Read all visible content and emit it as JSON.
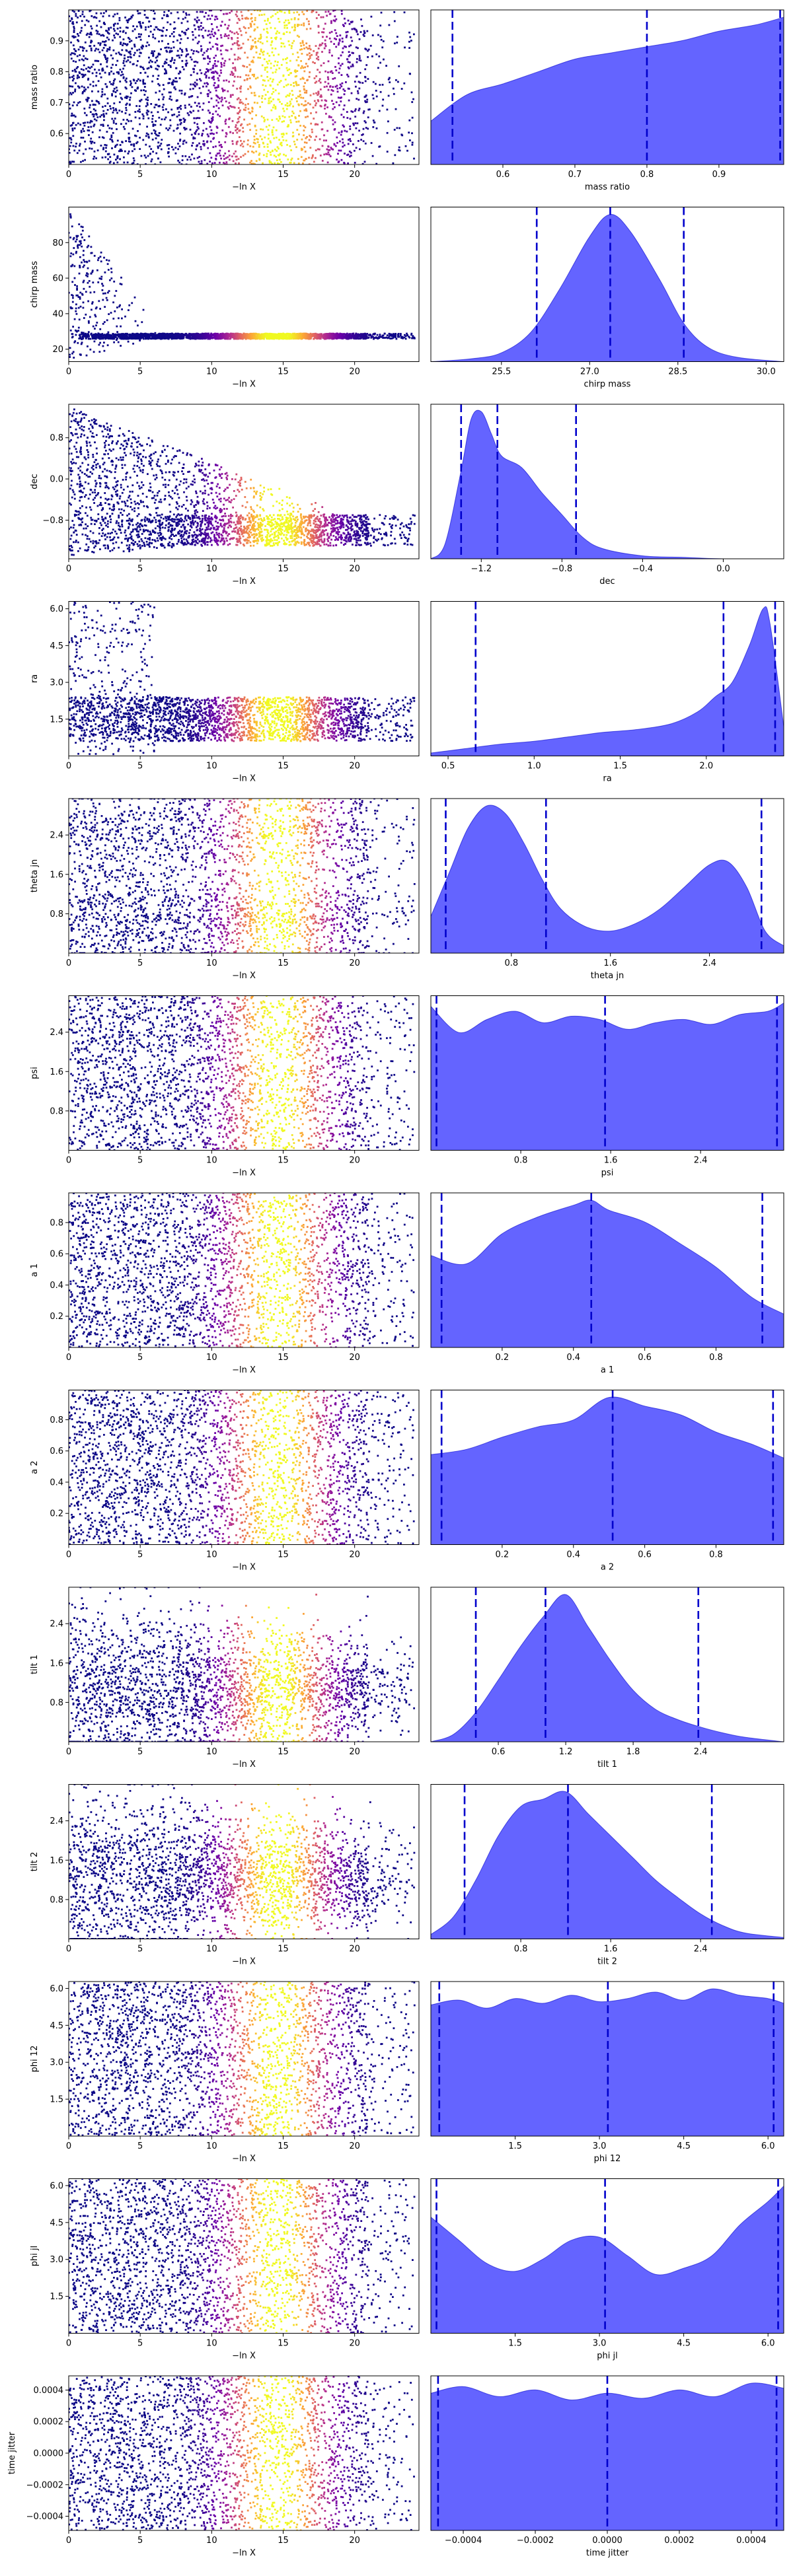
{
  "figure": {
    "x_axis_label": "−ln X"
  },
  "colors": {
    "trace_colormap": [
      "#0d0887",
      "#6a00a8",
      "#b12a90",
      "#e16462",
      "#fca636",
      "#f0f921"
    ],
    "posterior_fill": "#6464ff",
    "posterior_line": "#0000cc",
    "quantile_line": "#0000cc"
  },
  "chart_data": [
    {
      "type": "scatter",
      "name": "mass ratio",
      "ylabel": "mass ratio",
      "xlabel": "−ln X",
      "xlim": [
        0,
        24.5
      ],
      "ylim": [
        0.5,
        1.0
      ],
      "xticks": [
        0,
        5,
        10,
        15,
        20
      ],
      "yticks": [
        0.6,
        0.7,
        0.8,
        0.9
      ],
      "ytick_labels": [
        "0.6",
        "0.7",
        "0.8",
        "0.9"
      ],
      "pattern": "uniform",
      "y_range": [
        0.5,
        1.0
      ]
    },
    {
      "type": "area",
      "name": "mass ratio",
      "xlabel": "mass ratio",
      "xlim": [
        0.5,
        0.99
      ],
      "xticks": [
        0.6,
        0.7,
        0.8,
        0.9
      ],
      "xtick_labels": [
        "0.6",
        "0.7",
        "0.8",
        "0.9"
      ],
      "quantiles": [
        0.53,
        0.8,
        0.985
      ],
      "density": {
        "x": [
          0.5,
          0.55,
          0.6,
          0.65,
          0.7,
          0.75,
          0.8,
          0.85,
          0.9,
          0.95,
          0.99
        ],
        "y": [
          0.28,
          0.45,
          0.52,
          0.6,
          0.68,
          0.72,
          0.76,
          0.8,
          0.86,
          0.9,
          0.95
        ]
      }
    },
    {
      "type": "scatter",
      "name": "chirp mass",
      "ylabel": "chirp mass",
      "xlabel": "−ln X",
      "xlim": [
        0,
        24.5
      ],
      "ylim": [
        13,
        100
      ],
      "xticks": [
        0,
        5,
        10,
        15,
        20
      ],
      "yticks": [
        20,
        40,
        60,
        80
      ],
      "ytick_labels": [
        "20",
        "40",
        "60",
        "80"
      ],
      "pattern": "funnel",
      "y_center": 27.3,
      "y_wide": [
        14,
        99
      ],
      "y_narrow_halfwidth": 1.5,
      "converge_at": 7
    },
    {
      "type": "area",
      "name": "chirp mass",
      "xlabel": "chirp mass",
      "xlim": [
        24.3,
        30.3
      ],
      "xticks": [
        25.5,
        27.0,
        28.5,
        30.0
      ],
      "xtick_labels": [
        "25.5",
        "27.0",
        "28.5",
        "30.0"
      ],
      "quantiles": [
        26.1,
        27.35,
        28.6
      ],
      "density": {
        "x": [
          24.3,
          25.0,
          25.5,
          26.0,
          26.5,
          27.0,
          27.35,
          27.7,
          28.2,
          28.6,
          29.0,
          29.5,
          30.3
        ],
        "y": [
          0.0,
          0.02,
          0.06,
          0.2,
          0.5,
          0.85,
          1.0,
          0.88,
          0.55,
          0.26,
          0.1,
          0.03,
          0.0
        ]
      }
    },
    {
      "type": "scatter",
      "name": "dec",
      "ylabel": "dec",
      "xlabel": "−ln X",
      "xlim": [
        0,
        24.5
      ],
      "ylim": [
        -1.55,
        1.45
      ],
      "xticks": [
        0,
        5,
        10,
        15,
        20
      ],
      "yticks": [
        -0.8,
        0.0,
        0.8
      ],
      "ytick_labels": [
        "−0.8",
        "0.0",
        "0.8"
      ],
      "pattern": "wedge",
      "y_center": -1.0,
      "y_wide": [
        -1.5,
        1.4
      ],
      "y_narrow_halfwidth": 0.3,
      "converge_at": 20
    },
    {
      "type": "area",
      "name": "dec",
      "xlabel": "dec",
      "xlim": [
        -1.45,
        0.3
      ],
      "xticks": [
        -1.2,
        -0.8,
        -0.4,
        0.0
      ],
      "xtick_labels": [
        "−1.2",
        "−0.8",
        "−0.4",
        "0.0"
      ],
      "quantiles": [
        -1.3,
        -1.12,
        -0.73
      ],
      "density": {
        "x": [
          -1.45,
          -1.38,
          -1.3,
          -1.25,
          -1.2,
          -1.15,
          -1.1,
          -1.0,
          -0.9,
          -0.8,
          -0.7,
          -0.6,
          -0.4,
          -0.2,
          0.0,
          0.3
        ],
        "y": [
          0.0,
          0.1,
          0.6,
          0.95,
          1.0,
          0.85,
          0.7,
          0.62,
          0.45,
          0.3,
          0.15,
          0.07,
          0.02,
          0.01,
          0.0,
          0.0
        ]
      }
    },
    {
      "type": "scatter",
      "name": "ra",
      "ylabel": "ra",
      "xlabel": "−ln X",
      "xlim": [
        0,
        24.5
      ],
      "ylim": [
        0,
        6.3
      ],
      "xticks": [
        0,
        5,
        10,
        15,
        20
      ],
      "yticks": [
        1.5,
        3.0,
        4.5,
        6.0
      ],
      "ytick_labels": [
        "1.5",
        "3.0",
        "4.5",
        "6.0"
      ],
      "pattern": "band",
      "y_band": [
        0.6,
        2.4
      ],
      "y_wide": [
        0,
        6.28
      ],
      "converge_at": 6
    },
    {
      "type": "area",
      "name": "ra",
      "xlabel": "ra",
      "xlim": [
        0.4,
        2.45
      ],
      "xticks": [
        0.5,
        1.0,
        1.5,
        2.0
      ],
      "xtick_labels": [
        "0.5",
        "1.0",
        "1.5",
        "2.0"
      ],
      "quantiles": [
        0.66,
        2.1,
        2.4
      ],
      "density": {
        "x": [
          0.4,
          0.6,
          0.8,
          1.0,
          1.2,
          1.4,
          1.6,
          1.8,
          1.95,
          2.05,
          2.15,
          2.25,
          2.33,
          2.37,
          2.45
        ],
        "y": [
          0.02,
          0.05,
          0.08,
          0.1,
          0.13,
          0.16,
          0.18,
          0.22,
          0.3,
          0.4,
          0.5,
          0.75,
          1.0,
          0.9,
          0.2
        ]
      }
    },
    {
      "type": "scatter",
      "name": "theta jn",
      "ylabel": "theta jn",
      "xlabel": "−ln X",
      "xlim": [
        0,
        24.5
      ],
      "ylim": [
        0,
        3.14
      ],
      "xticks": [
        0,
        5,
        10,
        15,
        20
      ],
      "yticks": [
        0.8,
        1.6,
        2.4
      ],
      "ytick_labels": [
        "0.8",
        "1.6",
        "2.4"
      ],
      "pattern": "bimodal",
      "y_range": [
        0,
        3.14
      ],
      "modes": [
        0.65,
        2.5
      ]
    },
    {
      "type": "area",
      "name": "theta jn",
      "xlabel": "theta jn",
      "xlim": [
        0.15,
        3.0
      ],
      "xticks": [
        0.8,
        1.6,
        2.4
      ],
      "xtick_labels": [
        "0.8",
        "1.6",
        "2.4"
      ],
      "quantiles": [
        0.27,
        1.08,
        2.82
      ],
      "density": {
        "x": [
          0.15,
          0.3,
          0.45,
          0.6,
          0.75,
          0.9,
          1.05,
          1.2,
          1.4,
          1.6,
          1.8,
          2.0,
          2.2,
          2.4,
          2.55,
          2.7,
          2.85,
          3.0
        ],
        "y": [
          0.25,
          0.55,
          0.85,
          1.0,
          0.95,
          0.75,
          0.5,
          0.3,
          0.18,
          0.15,
          0.2,
          0.3,
          0.45,
          0.6,
          0.62,
          0.45,
          0.15,
          0.05
        ]
      }
    },
    {
      "type": "scatter",
      "name": "psi",
      "ylabel": "psi",
      "xlabel": "−ln X",
      "xlim": [
        0,
        24.5
      ],
      "ylim": [
        0,
        3.14
      ],
      "xticks": [
        0,
        5,
        10,
        15,
        20
      ],
      "yticks": [
        0.8,
        1.6,
        2.4
      ],
      "ytick_labels": [
        "0.8",
        "1.6",
        "2.4"
      ],
      "pattern": "uniform",
      "y_range": [
        0,
        3.14
      ]
    },
    {
      "type": "area",
      "name": "psi",
      "xlabel": "psi",
      "xlim": [
        0.0,
        3.14
      ],
      "xticks": [
        0.8,
        1.6,
        2.4
      ],
      "xtick_labels": [
        "0.8",
        "1.6",
        "2.4"
      ],
      "quantiles": [
        0.05,
        1.55,
        3.08
      ],
      "density": {
        "x": [
          0.0,
          0.25,
          0.5,
          0.75,
          1.0,
          1.25,
          1.5,
          1.75,
          2.0,
          2.25,
          2.5,
          2.75,
          3.0,
          3.14
        ],
        "y": [
          0.88,
          0.72,
          0.8,
          0.85,
          0.78,
          0.82,
          0.8,
          0.74,
          0.78,
          0.8,
          0.77,
          0.83,
          0.85,
          0.9
        ]
      }
    },
    {
      "type": "scatter",
      "name": "a 1",
      "ylabel": "a 1",
      "xlabel": "−ln X",
      "xlim": [
        0,
        24.5
      ],
      "ylim": [
        0,
        0.99
      ],
      "xticks": [
        0,
        5,
        10,
        15,
        20
      ],
      "yticks": [
        0.2,
        0.4,
        0.6,
        0.8
      ],
      "ytick_labels": [
        "0.2",
        "0.4",
        "0.6",
        "0.8"
      ],
      "pattern": "uniform",
      "y_range": [
        0,
        0.99
      ]
    },
    {
      "type": "area",
      "name": "a 1",
      "xlabel": "a 1",
      "xlim": [
        0.0,
        0.99
      ],
      "xticks": [
        0.2,
        0.4,
        0.6,
        0.8
      ],
      "xtick_labels": [
        "0.2",
        "0.4",
        "0.6",
        "0.8"
      ],
      "quantiles": [
        0.03,
        0.45,
        0.93
      ],
      "density": {
        "x": [
          0.0,
          0.1,
          0.2,
          0.3,
          0.4,
          0.45,
          0.5,
          0.6,
          0.7,
          0.8,
          0.9,
          0.99
        ],
        "y": [
          0.55,
          0.5,
          0.68,
          0.78,
          0.85,
          0.88,
          0.82,
          0.75,
          0.62,
          0.48,
          0.3,
          0.2
        ]
      }
    },
    {
      "type": "scatter",
      "name": "a 2",
      "ylabel": "a 2",
      "xlabel": "−ln X",
      "xlim": [
        0,
        24.5
      ],
      "ylim": [
        0,
        0.99
      ],
      "xticks": [
        0,
        5,
        10,
        15,
        20
      ],
      "yticks": [
        0.2,
        0.4,
        0.6,
        0.8
      ],
      "ytick_labels": [
        "0.2",
        "0.4",
        "0.6",
        "0.8"
      ],
      "pattern": "uniform",
      "y_range": [
        0,
        0.99
      ]
    },
    {
      "type": "area",
      "name": "a 2",
      "xlabel": "a 2",
      "xlim": [
        0.0,
        0.99
      ],
      "xticks": [
        0.2,
        0.4,
        0.6,
        0.8
      ],
      "xtick_labels": [
        "0.2",
        "0.4",
        "0.6",
        "0.8"
      ],
      "quantiles": [
        0.03,
        0.51,
        0.96
      ],
      "density": {
        "x": [
          0.0,
          0.1,
          0.2,
          0.3,
          0.4,
          0.5,
          0.6,
          0.7,
          0.8,
          0.9,
          0.99
        ],
        "y": [
          0.52,
          0.55,
          0.62,
          0.68,
          0.72,
          0.85,
          0.8,
          0.75,
          0.65,
          0.58,
          0.5
        ]
      }
    },
    {
      "type": "scatter",
      "name": "tilt 1",
      "ylabel": "tilt 1",
      "xlabel": "−ln X",
      "xlim": [
        0,
        24.5
      ],
      "ylim": [
        0,
        3.14
      ],
      "xticks": [
        0,
        5,
        10,
        15,
        20
      ],
      "yticks": [
        0.8,
        1.6,
        2.4
      ],
      "ytick_labels": [
        "0.8",
        "1.6",
        "2.4"
      ],
      "pattern": "tapered",
      "y_center": 1.05,
      "y_range": [
        0,
        3.14
      ],
      "converge_at": 24
    },
    {
      "type": "area",
      "name": "tilt 1",
      "xlabel": "tilt 1",
      "xlim": [
        0.0,
        3.14
      ],
      "xticks": [
        0.6,
        1.2,
        1.8,
        2.4
      ],
      "xtick_labels": [
        "0.6",
        "1.2",
        "1.8",
        "2.4"
      ],
      "quantiles": [
        0.4,
        1.02,
        2.38
      ],
      "density": {
        "x": [
          0.0,
          0.2,
          0.4,
          0.6,
          0.8,
          1.0,
          1.2,
          1.4,
          1.6,
          1.8,
          2.0,
          2.2,
          2.4,
          2.6,
          2.8,
          3.14
        ],
        "y": [
          0.0,
          0.05,
          0.2,
          0.42,
          0.65,
          0.85,
          1.0,
          0.78,
          0.55,
          0.35,
          0.22,
          0.15,
          0.1,
          0.06,
          0.03,
          0.0
        ]
      }
    },
    {
      "type": "scatter",
      "name": "tilt 2",
      "ylabel": "tilt 2",
      "xlabel": "−ln X",
      "xlim": [
        0,
        24.5
      ],
      "ylim": [
        0,
        3.14
      ],
      "xticks": [
        0,
        5,
        10,
        15,
        20
      ],
      "yticks": [
        0.8,
        1.6,
        2.4
      ],
      "ytick_labels": [
        "0.8",
        "1.6",
        "2.4"
      ],
      "pattern": "tapered",
      "y_center": 1.25,
      "y_range": [
        0,
        3.14
      ],
      "converge_at": 24
    },
    {
      "type": "area",
      "name": "tilt 2",
      "xlabel": "tilt 2",
      "xlim": [
        0.0,
        3.14
      ],
      "xticks": [
        0.8,
        1.6,
        2.4
      ],
      "xtick_labels": [
        "0.8",
        "1.6",
        "2.4"
      ],
      "quantiles": [
        0.3,
        1.22,
        2.5
      ],
      "density": {
        "x": [
          0.0,
          0.2,
          0.4,
          0.6,
          0.8,
          1.0,
          1.2,
          1.4,
          1.6,
          1.8,
          2.0,
          2.2,
          2.4,
          2.6,
          2.8,
          3.14
        ],
        "y": [
          0.03,
          0.15,
          0.4,
          0.7,
          0.9,
          0.95,
          1.0,
          0.85,
          0.7,
          0.55,
          0.4,
          0.28,
          0.17,
          0.09,
          0.04,
          0.01
        ]
      }
    },
    {
      "type": "scatter",
      "name": "phi 12",
      "ylabel": "phi 12",
      "xlabel": "−ln X",
      "xlim": [
        0,
        24.5
      ],
      "ylim": [
        0,
        6.28
      ],
      "xticks": [
        0,
        5,
        10,
        15,
        20
      ],
      "yticks": [
        1.5,
        3.0,
        4.5,
        6.0
      ],
      "ytick_labels": [
        "1.5",
        "3.0",
        "4.5",
        "6.0"
      ],
      "pattern": "uniform",
      "y_range": [
        0,
        6.28
      ]
    },
    {
      "type": "area",
      "name": "phi 12",
      "xlabel": "phi 12",
      "xlim": [
        0.0,
        6.28
      ],
      "xticks": [
        1.5,
        3.0,
        4.5,
        6.0
      ],
      "xtick_labels": [
        "1.5",
        "3.0",
        "4.5",
        "6.0"
      ],
      "quantiles": [
        0.15,
        3.15,
        6.1
      ],
      "density": {
        "x": [
          0.0,
          0.5,
          1.0,
          1.5,
          2.0,
          2.5,
          3.0,
          3.5,
          4.0,
          4.5,
          5.0,
          5.5,
          6.0,
          6.28
        ],
        "y": [
          0.82,
          0.85,
          0.8,
          0.86,
          0.83,
          0.88,
          0.84,
          0.86,
          0.9,
          0.85,
          0.92,
          0.88,
          0.86,
          0.83
        ]
      }
    },
    {
      "type": "scatter",
      "name": "phi jl",
      "ylabel": "phi jl",
      "xlabel": "−ln X",
      "xlim": [
        0,
        24.5
      ],
      "ylim": [
        0,
        6.28
      ],
      "xticks": [
        0,
        5,
        10,
        15,
        20
      ],
      "yticks": [
        1.5,
        3.0,
        4.5,
        6.0
      ],
      "ytick_labels": [
        "1.5",
        "3.0",
        "4.5",
        "6.0"
      ],
      "pattern": "uniform",
      "y_range": [
        0,
        6.28
      ]
    },
    {
      "type": "area",
      "name": "phi jl",
      "xlabel": "phi jl",
      "xlim": [
        0.0,
        6.28
      ],
      "xticks": [
        1.5,
        3.0,
        4.5,
        6.0
      ],
      "xtick_labels": [
        "1.5",
        "3.0",
        "4.5",
        "6.0"
      ],
      "quantiles": [
        0.1,
        3.1,
        6.18
      ],
      "density": {
        "x": [
          0.0,
          0.5,
          1.0,
          1.5,
          2.0,
          2.5,
          3.0,
          3.5,
          4.0,
          4.5,
          5.0,
          5.5,
          6.0,
          6.28
        ],
        "y": [
          0.75,
          0.6,
          0.45,
          0.4,
          0.48,
          0.6,
          0.62,
          0.5,
          0.38,
          0.42,
          0.5,
          0.7,
          0.85,
          0.95
        ]
      }
    },
    {
      "type": "scatter",
      "name": "time jitter",
      "ylabel": "time jitter",
      "xlabel": "−ln X",
      "xlim": [
        0,
        24.5
      ],
      "ylim": [
        -0.00049,
        0.00049
      ],
      "xticks": [
        0,
        5,
        10,
        15,
        20
      ],
      "yticks": [
        -0.0004,
        -0.0002,
        0.0,
        0.0002,
        0.0004
      ],
      "ytick_labels": [
        "−0.0004",
        "−0.0002",
        "0.0000",
        "0.0002",
        "0.0004"
      ],
      "pattern": "uniform",
      "y_range": [
        -0.00049,
        0.00049
      ]
    },
    {
      "type": "area",
      "name": "time jitter",
      "xlabel": "time jitter",
      "xlim": [
        -0.00049,
        0.00049
      ],
      "xticks": [
        -0.0004,
        -0.0002,
        0.0,
        0.0002,
        0.0004
      ],
      "xtick_labels": [
        "−0.0004",
        "−0.0002",
        "0.0000",
        "0.0002",
        "0.0004"
      ],
      "quantiles": [
        -0.00047,
        0.0,
        0.00047
      ],
      "density": {
        "x": [
          -0.00049,
          -0.0004,
          -0.0003,
          -0.0002,
          -0.0001,
          0.0,
          0.0001,
          0.0002,
          0.0003,
          0.0004,
          0.00049
        ],
        "y": [
          0.82,
          0.86,
          0.8,
          0.84,
          0.78,
          0.82,
          0.79,
          0.84,
          0.8,
          0.88,
          0.85
        ]
      }
    }
  ]
}
